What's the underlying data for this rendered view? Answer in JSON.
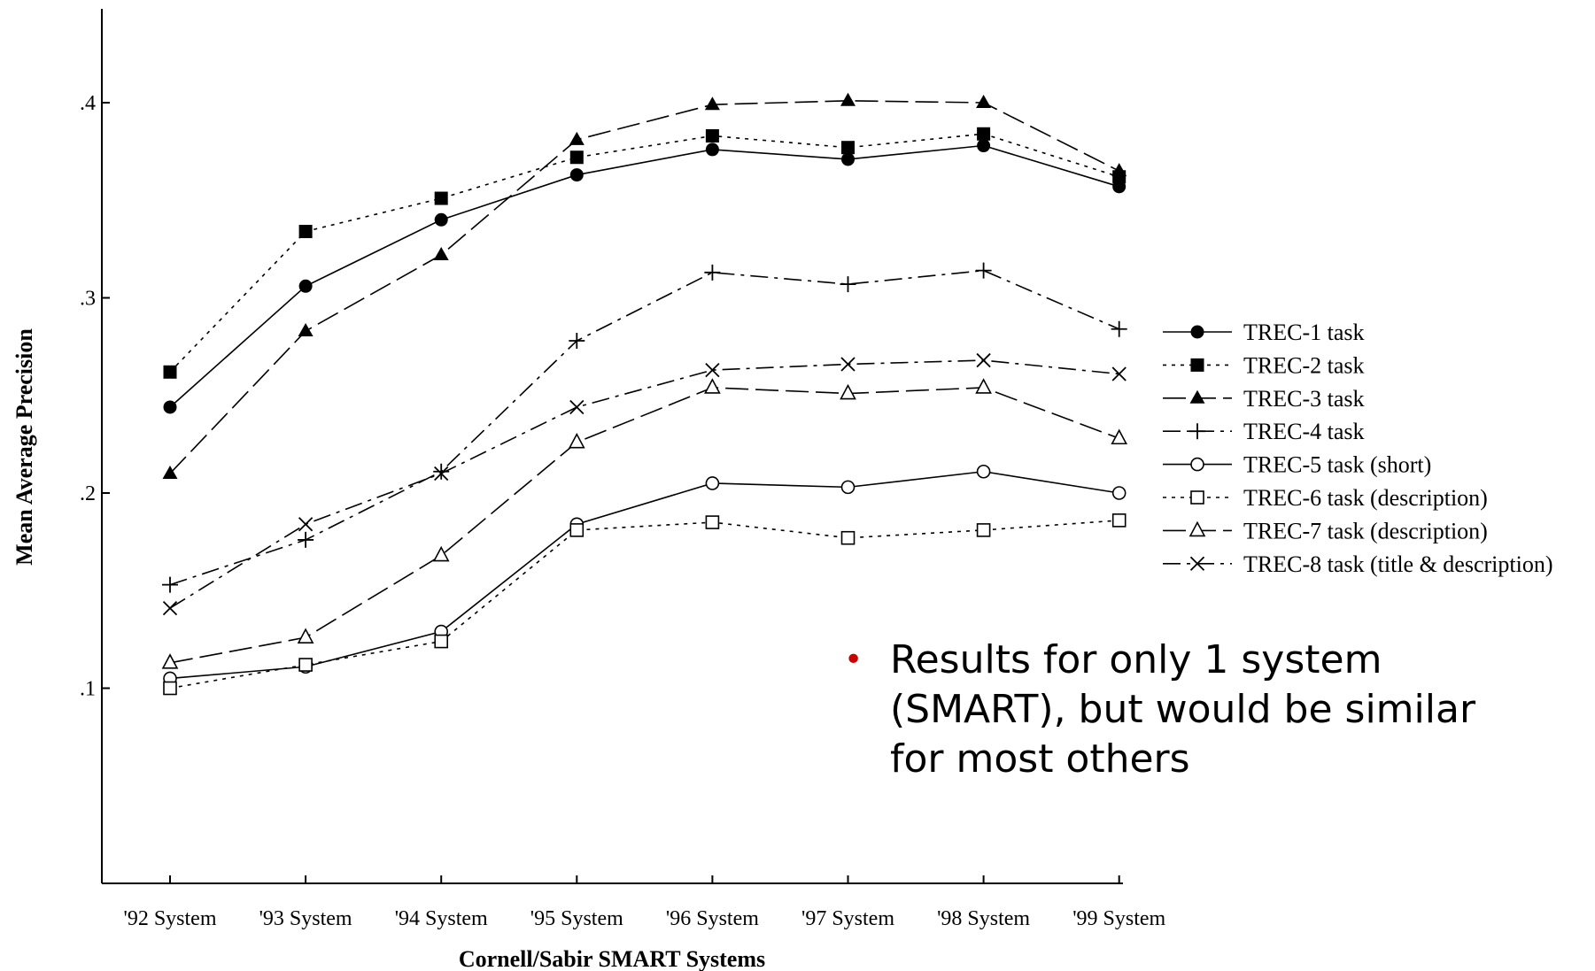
{
  "chart_data": {
    "type": "line",
    "title": "",
    "xlabel": "Cornell/Sabir SMART Systems",
    "ylabel": "Mean Average Precision",
    "categories": [
      "'92 System",
      "'93 System",
      "'94 System",
      "'95 System",
      "'96 System",
      "'97 System",
      "'98 System",
      "'99 System"
    ],
    "ylim": [
      0.0,
      0.45
    ],
    "yticks": [
      0.1,
      0.2,
      0.3,
      0.4
    ],
    "ytick_labels": [
      ".1",
      ".2",
      ".3",
      ".4"
    ],
    "grid": false,
    "legend_position": "right",
    "series": [
      {
        "name": "TREC-1 task",
        "marker": "filled-circle",
        "dash": "solid",
        "values": [
          0.244,
          0.306,
          0.34,
          0.363,
          0.376,
          0.371,
          0.378,
          0.357
        ]
      },
      {
        "name": "TREC-2 task",
        "marker": "filled-square",
        "dash": "dotted",
        "values": [
          0.262,
          0.334,
          0.351,
          0.372,
          0.383,
          0.377,
          0.384,
          0.362
        ]
      },
      {
        "name": "TREC-3 task",
        "marker": "filled-triangle",
        "dash": "long-dash",
        "values": [
          0.21,
          0.283,
          0.322,
          0.381,
          0.399,
          0.401,
          0.4,
          0.365
        ]
      },
      {
        "name": "TREC-4 task",
        "marker": "plus",
        "dash": "dash-dot",
        "values": [
          0.153,
          0.176,
          0.211,
          0.278,
          0.313,
          0.307,
          0.314,
          0.284
        ]
      },
      {
        "name": "TREC-5 task (short)",
        "marker": "open-circle",
        "dash": "solid",
        "values": [
          0.105,
          0.111,
          0.129,
          0.184,
          0.205,
          0.203,
          0.211,
          0.2
        ]
      },
      {
        "name": "TREC-6 task (description)",
        "marker": "open-square",
        "dash": "dotted",
        "values": [
          0.1,
          0.112,
          0.124,
          0.181,
          0.185,
          0.177,
          0.181,
          0.186
        ]
      },
      {
        "name": "TREC-7 task (description)",
        "marker": "open-triangle",
        "dash": "long-dash",
        "values": [
          0.113,
          0.126,
          0.168,
          0.226,
          0.254,
          0.251,
          0.254,
          0.228
        ]
      },
      {
        "name": "TREC-8 task (title & description)",
        "marker": "cross",
        "dash": "dash-dot",
        "values": [
          0.141,
          0.184,
          0.21,
          0.244,
          0.263,
          0.266,
          0.268,
          0.261
        ]
      }
    ]
  },
  "note": {
    "bullet": "•",
    "text": "Results for only 1 system (SMART), but would be similar for most others",
    "bullet_color": "#cc0000"
  }
}
